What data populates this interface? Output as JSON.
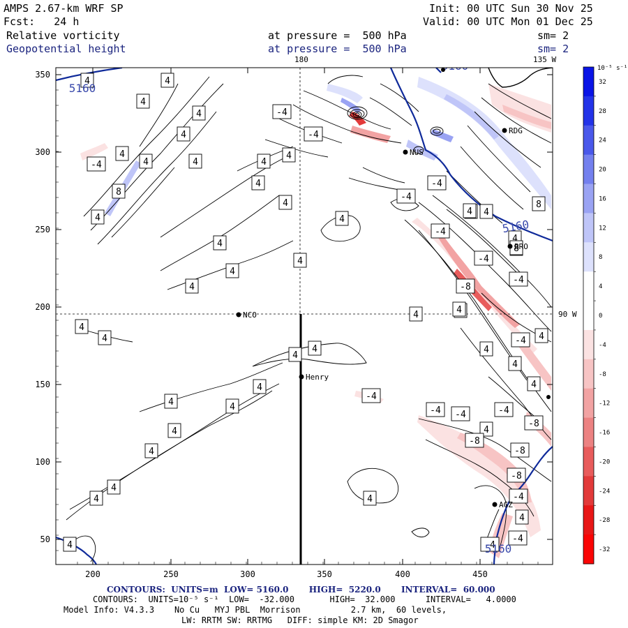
{
  "header": {
    "model": "AMPS 2.67-km WRF SP",
    "init": "Init: 00 UTC Sun 30 Nov 25",
    "fcst": "Fcst:   24 h",
    "valid": "Valid: 00 UTC Mon 01 Dec 25",
    "field1": "Relative vorticity",
    "field1_level": "at pressure =  500 hPa",
    "field1_sm": "sm= 2",
    "field2": "Geopotential height",
    "field2_level": "at pressure =  500 hPa",
    "field2_sm": "sm= 2"
  },
  "colorbar": {
    "unit": "10⁻⁵ s⁻¹",
    "ticks": [
      "32",
      "28",
      "24",
      "20",
      "16",
      "12",
      "8",
      "4",
      "0",
      "-4",
      "-8",
      "-12",
      "-16",
      "-20",
      "-24",
      "-28",
      "-32"
    ],
    "colors": [
      "#0a14e6",
      "#2333e8",
      "#4a58ea",
      "#7480ee",
      "#9aa3f3",
      "#bfc5f8",
      "#dde1fc",
      "#ffffff",
      "#ffffff",
      "#fbe2e2",
      "#f7c4c4",
      "#f2a3a3",
      "#ec8282",
      "#e85c5c",
      "#e23a3a",
      "#e81717",
      "#fa0505"
    ]
  },
  "map": {
    "x_ticks": [
      "200",
      "250",
      "300",
      "350",
      "400",
      "450"
    ],
    "y_ticks": [
      "350",
      "300",
      "250",
      "200",
      "150",
      "100",
      "50"
    ],
    "meridian_180": "180",
    "meridian_135w": "135 W",
    "meridian_90w": "90 W",
    "stations": [
      {
        "name": "NCO"
      },
      {
        "name": "Henry"
      },
      {
        "name": "RDG"
      },
      {
        "name": "NUS"
      },
      {
        "name": "BRO"
      },
      {
        "name": "AGZ"
      }
    ],
    "height_labels": [
      "5160",
      "5160",
      "5160",
      "5160"
    ],
    "vort_labels": [
      "4",
      "-4",
      "8",
      "-8"
    ]
  },
  "footer": {
    "contours_height_prefix": "CONTOURS:  UNITS=m  LOW=",
    "contours_height_low": "5160.0",
    "contours_height_high_label": "HIGH=",
    "contours_height_high": "5220.0",
    "contours_height_interval_label": "INTERVAL=",
    "contours_height_interval": "60.000",
    "contours_vort": "CONTOURS:  UNITS=10⁻⁵ s⁻¹  LOW=  -32.000       HIGH=  32.000      INTERVAL=   4.0000",
    "model_info": "Model Info: V4.3.3    No Cu   MYJ PBL  Morrison          2.7 km,  60 levels,",
    "physics": "LW: RRTM SW: RRTMG   DIFF: simple KM: 2D Smagor"
  }
}
